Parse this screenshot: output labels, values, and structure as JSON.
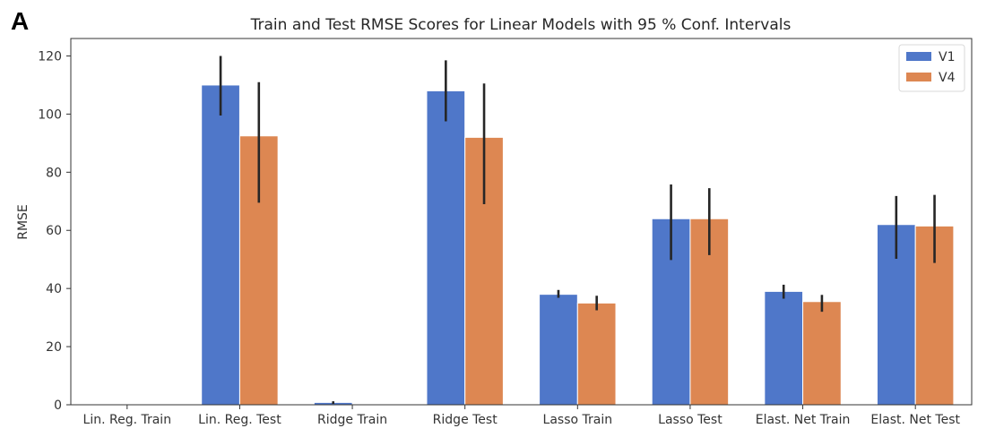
{
  "panel_label": "A",
  "chart_data": {
    "type": "bar",
    "title": "Train and Test RMSE Scores for Linear Models with 95 % Conf. Intervals",
    "xlabel": "",
    "ylabel": "RMSE",
    "ylim": [
      0,
      126
    ],
    "yticks": [
      0,
      20,
      40,
      60,
      80,
      100,
      120
    ],
    "grid": false,
    "legend_position": "top-right",
    "categories": [
      "Lin. Reg. Train",
      "Lin. Reg. Test",
      "Ridge Train",
      "Ridge Test",
      "Lasso Train",
      "Lasso Test",
      "Elast. Net Train",
      "Elast. Net Test"
    ],
    "series": [
      {
        "name": "V1",
        "color": "#4f77c9",
        "values": [
          0,
          110,
          0.8,
          108,
          38,
          64,
          39,
          62
        ],
        "ci_low": [
          0,
          99.5,
          0.3,
          97.5,
          36.8,
          49.8,
          36.5,
          50.2
        ],
        "ci_high": [
          0,
          120,
          1.2,
          118.5,
          39.5,
          75.8,
          41.3,
          71.8
        ]
      },
      {
        "name": "V4",
        "color": "#dd8752",
        "values": [
          0,
          92.5,
          0,
          92,
          35,
          64,
          35.5,
          61.5
        ],
        "ci_low": [
          0,
          69.5,
          0,
          69,
          32.5,
          51.5,
          32,
          48.8
        ],
        "ci_high": [
          0,
          111,
          0,
          110.5,
          37.5,
          74.5,
          37.8,
          72.2
        ]
      }
    ]
  }
}
